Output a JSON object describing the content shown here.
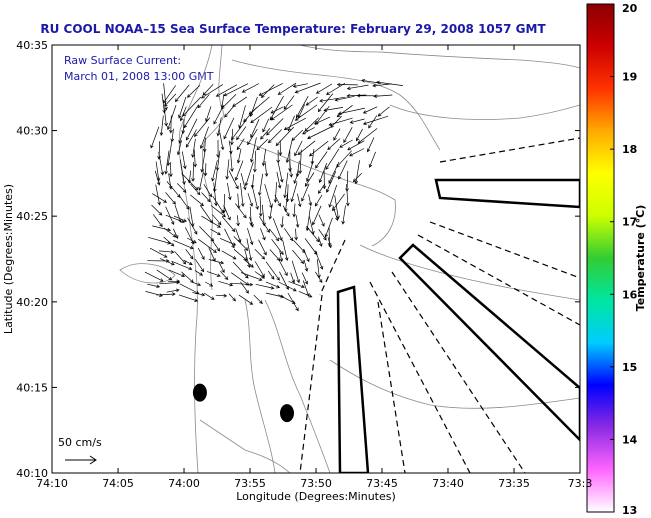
{
  "chart_data": {
    "type": "map",
    "title": "RU COOL  NOAA–15  Sea Surface Temperature:  February 29, 2008 1057 GMT",
    "annotation_line1": "Raw Surface Current:",
    "annotation_line2": "March 01, 2008 13:00 GMT",
    "xlabel": "Longitude (Degrees:Minutes)",
    "ylabel": "Latitude (Degrees:Minutes)",
    "x_ticks": [
      {
        "label": "74:10",
        "value": -74.1667
      },
      {
        "label": "74:05",
        "value": -74.0833
      },
      {
        "label": "74:00",
        "value": -74.0
      },
      {
        "label": "73:55",
        "value": -73.9167
      },
      {
        "label": "73:50",
        "value": -73.8333
      },
      {
        "label": "73:45",
        "value": -73.75
      },
      {
        "label": "73:40",
        "value": -73.6667
      },
      {
        "label": "73:35",
        "value": -73.5833
      },
      {
        "label": "73:3",
        "value": -73.5
      }
    ],
    "y_ticks": [
      {
        "label": "40:10",
        "value": 40.1667
      },
      {
        "label": "40:15",
        "value": 40.25
      },
      {
        "label": "40:20",
        "value": 40.3333
      },
      {
        "label": "40:25",
        "value": 40.4167
      },
      {
        "label": "40:30",
        "value": 40.5
      },
      {
        "label": "40:35",
        "value": 40.5833
      }
    ],
    "xlim": [
      -74.1667,
      -73.5
    ],
    "ylim": [
      40.1667,
      40.5833
    ],
    "colorbar": {
      "label": "Temperature (°C)",
      "min": 13,
      "max": 20,
      "tick_labels": [
        "13",
        "14",
        "15",
        "16",
        "17",
        "18",
        "19",
        "20"
      ],
      "colors": [
        "#ffffff",
        "#ff66ff",
        "#8a2be2",
        "#0000ff",
        "#00ccff",
        "#00e6a0",
        "#33cc33",
        "#ccff00",
        "#ffff00",
        "#ffaa00",
        "#ff3300",
        "#cc0000",
        "#8b0000"
      ]
    },
    "scale_arrow": {
      "label": "50 cm/s",
      "speed_cm_s": 50
    },
    "current_vectors": {
      "lon_range": [
        -74.05,
        -73.72
      ],
      "lat_range": [
        40.34,
        40.545
      ],
      "dominant_flow": "southward to south-southwest along the Sandy Hook/New Jersey shore, eastward in the northern apex"
    },
    "buoys": [
      {
        "lon": -73.98,
        "lat": 40.245
      },
      {
        "lon": -73.87,
        "lat": 40.225
      }
    ]
  }
}
